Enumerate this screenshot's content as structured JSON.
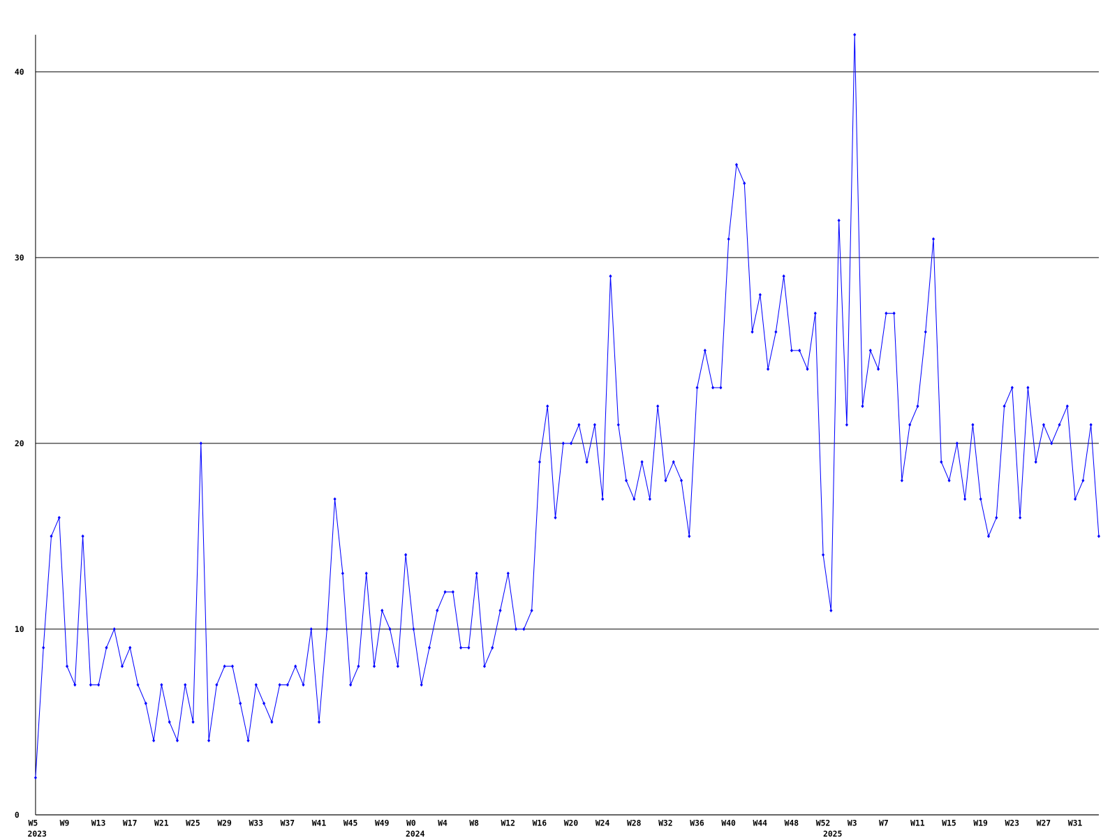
{
  "chart_data": {
    "type": "line",
    "categories": [
      "W5",
      null,
      null,
      null,
      "W9",
      null,
      null,
      null,
      "W13",
      null,
      null,
      null,
      "W17",
      null,
      null,
      null,
      "W21",
      null,
      null,
      null,
      "W25",
      null,
      null,
      null,
      "W29",
      null,
      null,
      null,
      "W33",
      null,
      null,
      null,
      "W37",
      null,
      null,
      null,
      "W41",
      null,
      null,
      null,
      "W45",
      null,
      null,
      null,
      "W49",
      null,
      null,
      null,
      "W0",
      null,
      null,
      null,
      "W4",
      null,
      null,
      null,
      "W8",
      null,
      null,
      null,
      "W12",
      null,
      null,
      null,
      "W16",
      null,
      null,
      null,
      "W20",
      null,
      null,
      null,
      "W24",
      null,
      null,
      null,
      "W28",
      null,
      null,
      null,
      "W32",
      null,
      null,
      null,
      "W36",
      null,
      null,
      null,
      "W40",
      null,
      null,
      null,
      "W44",
      null,
      null,
      null,
      "W48",
      null,
      null,
      null,
      "W52",
      null,
      null,
      null,
      "W3",
      null,
      null,
      null,
      "W7",
      null,
      null,
      null,
      "W11",
      null,
      null,
      null,
      "W15",
      null,
      null,
      null,
      "W19",
      null,
      null,
      null,
      "W23",
      null,
      null,
      null,
      "W27",
      null,
      null,
      null,
      "W31",
      null,
      null,
      null
    ],
    "year_labels": [
      "2023",
      null,
      null,
      null,
      null,
      null,
      null,
      null,
      null,
      null,
      null,
      null,
      null,
      null,
      null,
      null,
      null,
      null,
      null,
      null,
      null,
      null,
      null,
      null,
      null,
      null,
      null,
      null,
      null,
      null,
      null,
      null,
      null,
      null,
      null,
      null,
      null,
      null,
      null,
      null,
      null,
      null,
      null,
      null,
      null,
      null,
      null,
      null,
      "2024",
      null,
      null,
      null,
      null,
      null,
      null,
      null,
      null,
      null,
      null,
      null,
      null,
      null,
      null,
      null,
      null,
      null,
      null,
      null,
      null,
      null,
      null,
      null,
      null,
      null,
      null,
      null,
      null,
      null,
      null,
      null,
      null,
      null,
      null,
      null,
      null,
      null,
      null,
      null,
      null,
      null,
      null,
      null,
      null,
      null,
      null,
      null,
      null,
      null,
      null,
      null,
      null,
      "2025",
      null,
      null,
      null,
      null,
      null,
      null,
      null,
      null,
      null,
      null,
      null,
      null,
      null,
      null,
      null,
      null,
      null,
      null,
      null,
      null,
      null,
      null,
      null,
      null,
      null,
      null,
      null,
      null,
      null,
      null,
      null,
      null,
      null,
      null
    ],
    "series": [
      {
        "color": "#0000ff",
        "values": [
          2,
          9,
          15,
          16,
          8,
          7,
          15,
          7,
          7,
          9,
          10,
          8,
          9,
          7,
          6,
          4,
          7,
          5,
          4,
          7,
          5,
          20,
          4,
          7,
          8,
          8,
          6,
          4,
          7,
          6,
          5,
          7,
          7,
          8,
          7,
          10,
          5,
          10,
          17,
          13,
          7,
          8,
          13,
          8,
          11,
          10,
          8,
          14,
          10,
          7,
          9,
          11,
          12,
          12,
          9,
          9,
          13,
          8,
          9,
          11,
          13,
          10,
          10,
          11,
          19,
          22,
          16,
          20,
          20,
          21,
          19,
          21,
          17,
          29,
          21,
          18,
          17,
          19,
          17,
          22,
          18,
          19,
          18,
          15,
          23,
          25,
          23,
          23,
          31,
          35,
          34,
          26,
          28,
          24,
          26,
          29,
          25,
          25,
          24,
          27,
          14,
          11,
          32,
          21,
          42,
          22,
          25,
          24,
          27,
          27,
          18,
          21,
          22,
          26,
          31,
          19,
          18,
          20,
          17,
          21,
          17,
          15,
          16,
          22,
          23,
          16,
          23,
          19,
          21,
          20,
          21,
          22,
          17,
          18,
          21,
          15
        ]
      }
    ],
    "ylim": [
      0,
      42
    ],
    "yticks": [
      0,
      10,
      20,
      30,
      40
    ],
    "grid": true
  }
}
